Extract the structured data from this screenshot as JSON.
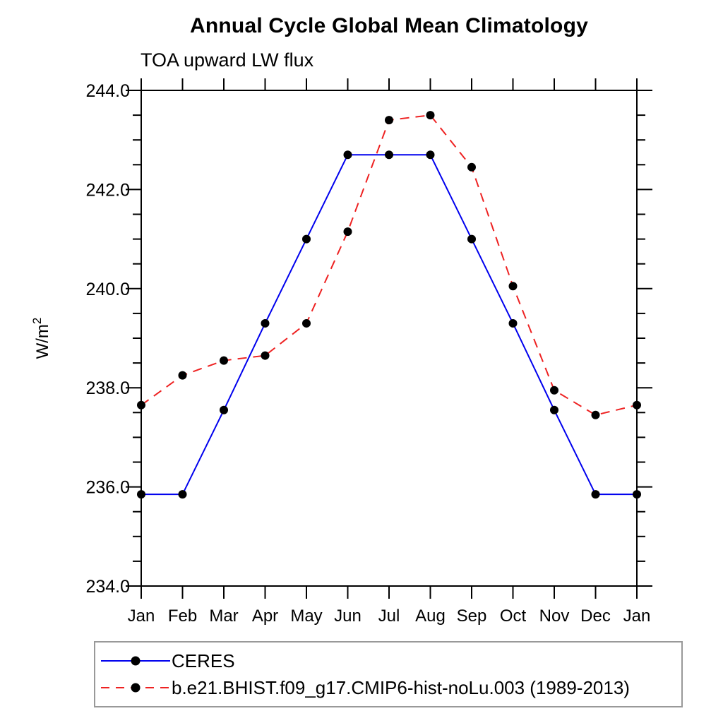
{
  "header": {
    "title": "Annual Cycle Global Mean Climatology",
    "subtitle": "TOA upward LW flux"
  },
  "chart_data": {
    "type": "line",
    "title": "Annual Cycle Global Mean Climatology",
    "subtitle": "TOA upward LW flux",
    "xlabel": "",
    "ylabel": "W/m2",
    "ylabel_base": "W/m",
    "ylabel_sup": "2",
    "categories": [
      "Jan",
      "Feb",
      "Mar",
      "Apr",
      "May",
      "Jun",
      "Jul",
      "Aug",
      "Sep",
      "Oct",
      "Nov",
      "Dec",
      "Jan"
    ],
    "ylim": [
      234.0,
      244.0
    ],
    "ytick_major": [
      234.0,
      236.0,
      238.0,
      240.0,
      242.0,
      244.0
    ],
    "ytick_labels": [
      "234.0",
      "236.0",
      "238.0",
      "240.0",
      "242.0",
      "244.0"
    ],
    "ytick_minor_step": 0.5,
    "grid": "off",
    "legend_position": "bottom-left",
    "frame_color": "#000000",
    "series": [
      {
        "name": "CERES",
        "color": "#0000ee",
        "style": "solid",
        "marker": "circle",
        "marker_color": "#000000",
        "values": [
          235.85,
          235.85,
          237.55,
          239.3,
          241.0,
          242.7,
          242.7,
          242.7,
          241.0,
          239.3,
          237.55,
          235.85,
          235.85
        ]
      },
      {
        "name": "b.e21.BHIST.f09_g17.CMIP6-hist-noLu.003 (1989-2013)",
        "color": "#ee2222",
        "style": "dashed",
        "marker": "circle",
        "marker_color": "#000000",
        "values": [
          237.65,
          238.25,
          238.55,
          238.65,
          239.3,
          241.15,
          243.4,
          243.5,
          242.45,
          240.05,
          237.95,
          237.45,
          237.65
        ]
      }
    ]
  }
}
